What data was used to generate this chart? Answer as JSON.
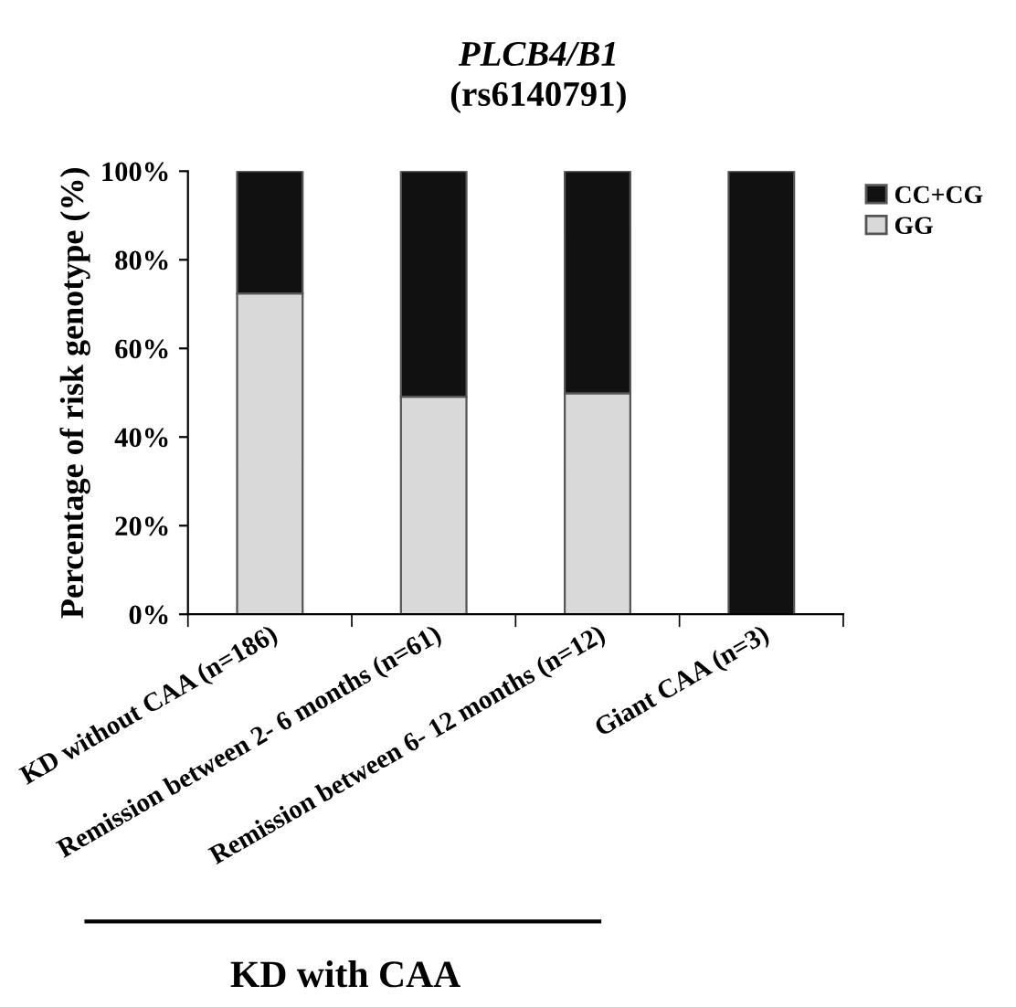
{
  "chart_data": {
    "type": "bar",
    "stacked": true,
    "title": "PLCB4/B1",
    "subtitle": "(rs6140791)",
    "ylabel": "Percentage of risk genotype (%)",
    "categories": [
      "KD without CAA (n=186)",
      "Remission between 2- 6 months (n=61)",
      "Remission between 6- 12 months (n=12)",
      "Giant CAA (n=3)"
    ],
    "series": [
      {
        "name": "GG",
        "color": "#d9d9d9",
        "values": [
          72.4,
          49.1,
          49.9,
          0
        ]
      },
      {
        "name": "CC+CG",
        "color": "#111111",
        "values": [
          27.6,
          50.9,
          50.1,
          100
        ]
      }
    ],
    "ylim": [
      0,
      100
    ],
    "yticks": [
      {
        "value": 0,
        "label": "0%"
      },
      {
        "value": 20,
        "label": "20%"
      },
      {
        "value": 40,
        "label": "40%"
      },
      {
        "value": 60,
        "label": "60%"
      },
      {
        "value": 80,
        "label": "80%"
      },
      {
        "value": 100,
        "label": "100%"
      }
    ],
    "legend": "top right",
    "grid": false,
    "annotations": [
      "KD with CAA"
    ]
  }
}
